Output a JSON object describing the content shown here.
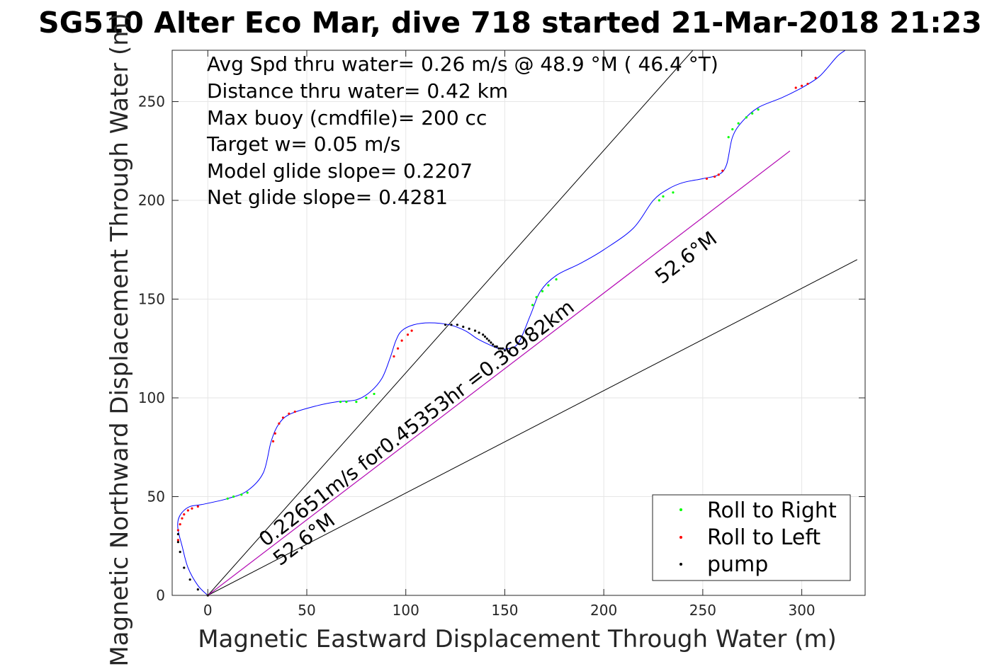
{
  "chart_data": {
    "type": "line",
    "title": "SG510 Alter Eco Mar, dive 718 started 21-Mar-2018 21:23",
    "xlabel": "Magnetic Eastward Displacement Through Water (m)",
    "ylabel": "Magnetic Northward Displacement Through Water (m)",
    "xlim": [
      -18,
      332
    ],
    "ylim": [
      0,
      276
    ],
    "xticks": [
      "0",
      "50",
      "100",
      "150",
      "200",
      "250",
      "300"
    ],
    "yticks": [
      "0",
      "50",
      "100",
      "150",
      "200",
      "250"
    ],
    "grid": true,
    "legend_position": "bottom-right",
    "annotations": [
      "Avg Spd thru water=  0.26 m/s @  48.9 °M ( 46.4 °T)",
      "Distance thru water=  0.42 km",
      "Max buoy (cmdfile)= 200 cc",
      "Target w= 0.05 m/s",
      "Model glide slope= 0.2207",
      "Net glide slope= 0.4281"
    ],
    "line_labels": {
      "net": "0.22651m/s for0.45353hr =0.36982km",
      "heading_low": "52.6°M",
      "heading_high": "52.6°M"
    },
    "track": {
      "color": "#0000ff",
      "x": [
        0,
        -5,
        -10,
        -13,
        -15,
        -15,
        -13,
        -9,
        -3,
        10,
        20,
        28,
        32,
        36,
        42,
        55,
        65,
        75,
        82,
        88,
        92,
        95,
        98,
        104,
        112,
        122,
        130,
        136,
        142,
        147,
        152,
        157,
        163,
        168,
        176,
        188,
        200,
        215,
        225,
        233,
        240,
        250,
        258,
        262,
        265,
        270,
        278,
        290,
        300,
        308,
        312,
        318,
        322
      ],
      "y": [
        0,
        5,
        14,
        25,
        33,
        38,
        42,
        45,
        46,
        49,
        53,
        62,
        78,
        87,
        92,
        96,
        98,
        99,
        103,
        110,
        120,
        129,
        134,
        137,
        138,
        137,
        134,
        130,
        127,
        125,
        125,
        128,
        142,
        154,
        162,
        168,
        175,
        186,
        200,
        206,
        209,
        211,
        213,
        218,
        232,
        240,
        247,
        252,
        257,
        262,
        266,
        273,
        276
      ]
    },
    "series": [
      {
        "name": "Roll to Right",
        "color": "#00ff00",
        "x": [
          10,
          13,
          17,
          20,
          67,
          70,
          75,
          80,
          84,
          164,
          166,
          169,
          172,
          176,
          228,
          230,
          235,
          263,
          265,
          268,
          272,
          275,
          278
        ],
        "y": [
          49,
          50,
          51,
          52,
          98,
          98,
          98,
          100,
          102,
          147,
          151,
          154,
          157,
          160,
          200,
          202,
          204,
          232,
          236,
          239,
          242,
          244,
          246
        ]
      },
      {
        "name": "Roll to Left",
        "color": "#ff0000",
        "x": [
          -15,
          -15,
          -14,
          -13,
          -12,
          -10,
          -8,
          -5,
          0,
          33,
          34,
          36,
          38,
          41,
          44,
          94,
          96,
          98,
          101,
          103,
          252,
          256,
          258,
          260,
          297,
          300,
          303,
          307
        ],
        "y": [
          28,
          33,
          36,
          39,
          41,
          43,
          44,
          45,
          0,
          78,
          82,
          87,
          90,
          92,
          93,
          121,
          125,
          129,
          132,
          134,
          211,
          212,
          213,
          215,
          257,
          258,
          259,
          262
        ]
      },
      {
        "name": "pump",
        "color": "#000000",
        "x": [
          -15,
          -15,
          -14,
          -12,
          -9,
          -5,
          0,
          120,
          123,
          126,
          129,
          132,
          135,
          137,
          139,
          140,
          141,
          142,
          143,
          144,
          145,
          146,
          147,
          148,
          149,
          150
        ],
        "y": [
          31,
          27,
          22,
          14,
          8,
          3,
          0,
          137,
          137,
          137,
          136,
          135,
          134,
          133,
          132,
          131,
          130,
          129,
          128,
          127,
          126,
          126,
          125,
          125,
          125,
          124
        ]
      }
    ],
    "reference_lines": [
      {
        "name": "upper heading bound",
        "color": "#000000",
        "x": [
          0,
          245
        ],
        "y": [
          0,
          276
        ]
      },
      {
        "name": "lower heading bound",
        "color": "#000000",
        "x": [
          0,
          328
        ],
        "y": [
          0,
          170
        ]
      },
      {
        "name": "net displacement",
        "color": "#000000",
        "x": [
          0,
          294
        ],
        "y": [
          0,
          225
        ]
      },
      {
        "name": "model glide heading",
        "color": "#cc00cc",
        "x": [
          0,
          294
        ],
        "y": [
          0,
          225
        ]
      }
    ]
  }
}
